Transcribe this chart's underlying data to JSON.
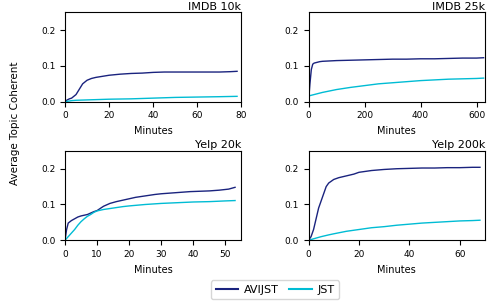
{
  "subplots": [
    {
      "title": "IMDB 10k",
      "xlabel": "Minutes",
      "xlim": [
        0,
        80
      ],
      "ylim": [
        0,
        0.25
      ],
      "yticks": [
        0.0,
        0.1,
        0.2
      ],
      "avijst": {
        "x": [
          0,
          1,
          2,
          3,
          4,
          5,
          6,
          7,
          8,
          9,
          10,
          12,
          14,
          16,
          18,
          20,
          25,
          30,
          35,
          40,
          45,
          50,
          55,
          60,
          65,
          70,
          75,
          78
        ],
        "y": [
          0.0,
          0.005,
          0.008,
          0.01,
          0.015,
          0.02,
          0.03,
          0.04,
          0.05,
          0.055,
          0.06,
          0.065,
          0.068,
          0.07,
          0.072,
          0.074,
          0.077,
          0.079,
          0.08,
          0.082,
          0.083,
          0.083,
          0.083,
          0.083,
          0.083,
          0.083,
          0.084,
          0.085
        ]
      },
      "jst": {
        "x": [
          0,
          1,
          2,
          3,
          5,
          10,
          20,
          30,
          40,
          50,
          60,
          70,
          78
        ],
        "y": [
          0.0,
          0.001,
          0.002,
          0.003,
          0.004,
          0.005,
          0.007,
          0.008,
          0.01,
          0.012,
          0.013,
          0.014,
          0.015
        ]
      }
    },
    {
      "title": "IMDB 25k",
      "xlabel": "Minutes",
      "xlim": [
        0,
        630
      ],
      "ylim": [
        0,
        0.25
      ],
      "yticks": [
        0.0,
        0.1,
        0.2
      ],
      "avijst": {
        "x": [
          0,
          5,
          10,
          15,
          20,
          30,
          40,
          50,
          75,
          100,
          150,
          200,
          250,
          300,
          350,
          400,
          450,
          500,
          550,
          600,
          625
        ],
        "y": [
          0.0,
          0.05,
          0.09,
          0.105,
          0.108,
          0.11,
          0.112,
          0.113,
          0.114,
          0.115,
          0.116,
          0.117,
          0.118,
          0.119,
          0.119,
          0.12,
          0.12,
          0.121,
          0.122,
          0.122,
          0.123
        ]
      },
      "jst": {
        "x": [
          0,
          5,
          10,
          20,
          30,
          50,
          75,
          100,
          150,
          200,
          250,
          300,
          350,
          400,
          450,
          500,
          550,
          600,
          625
        ],
        "y": [
          0.015,
          0.017,
          0.018,
          0.02,
          0.022,
          0.026,
          0.03,
          0.034,
          0.04,
          0.045,
          0.05,
          0.053,
          0.056,
          0.059,
          0.061,
          0.063,
          0.064,
          0.065,
          0.066
        ]
      }
    },
    {
      "title": "Yelp 20k",
      "xlabel": "Minutes",
      "xlim": [
        0,
        55
      ],
      "ylim": [
        0,
        0.25
      ],
      "yticks": [
        0.0,
        0.1,
        0.2
      ],
      "avijst": {
        "x": [
          0,
          0.5,
          1,
          2,
          3,
          4,
          5,
          6,
          7,
          8,
          9,
          10,
          12,
          14,
          16,
          18,
          20,
          22,
          25,
          28,
          30,
          33,
          36,
          39,
          42,
          45,
          48,
          51,
          53
        ],
        "y": [
          0.0,
          0.03,
          0.048,
          0.055,
          0.06,
          0.065,
          0.068,
          0.07,
          0.072,
          0.076,
          0.08,
          0.083,
          0.095,
          0.103,
          0.108,
          0.112,
          0.116,
          0.12,
          0.124,
          0.128,
          0.13,
          0.132,
          0.134,
          0.136,
          0.137,
          0.138,
          0.14,
          0.143,
          0.148
        ]
      },
      "jst": {
        "x": [
          0,
          1,
          2,
          3,
          4,
          5,
          6,
          7,
          8,
          9,
          10,
          12,
          15,
          18,
          20,
          25,
          30,
          35,
          40,
          45,
          50,
          53
        ],
        "y": [
          0.0,
          0.01,
          0.02,
          0.03,
          0.042,
          0.052,
          0.06,
          0.067,
          0.072,
          0.078,
          0.082,
          0.086,
          0.09,
          0.094,
          0.096,
          0.1,
          0.103,
          0.105,
          0.107,
          0.108,
          0.11,
          0.111
        ]
      }
    },
    {
      "title": "Yelp 200k",
      "xlabel": "Minutes",
      "xlim": [
        0,
        70
      ],
      "ylim": [
        0,
        0.25
      ],
      "yticks": [
        0.0,
        0.1,
        0.2
      ],
      "avijst": {
        "x": [
          0,
          1,
          2,
          3,
          4,
          5,
          6,
          7,
          8,
          10,
          12,
          15,
          18,
          20,
          25,
          30,
          35,
          40,
          45,
          50,
          55,
          60,
          65,
          68
        ],
        "y": [
          0.0,
          0.01,
          0.03,
          0.06,
          0.09,
          0.11,
          0.13,
          0.15,
          0.16,
          0.17,
          0.175,
          0.18,
          0.185,
          0.19,
          0.195,
          0.198,
          0.2,
          0.201,
          0.202,
          0.202,
          0.203,
          0.203,
          0.204,
          0.204
        ]
      },
      "jst": {
        "x": [
          0,
          1,
          2,
          3,
          5,
          8,
          10,
          15,
          20,
          25,
          30,
          35,
          40,
          45,
          50,
          55,
          60,
          65,
          68
        ],
        "y": [
          0.0,
          0.002,
          0.004,
          0.006,
          0.01,
          0.015,
          0.018,
          0.025,
          0.03,
          0.035,
          0.038,
          0.042,
          0.045,
          0.048,
          0.05,
          0.052,
          0.054,
          0.055,
          0.056
        ]
      }
    }
  ],
  "avijst_color": "#1a237e",
  "jst_color": "#00bcd4",
  "ylabel": "Average Topic Coherent",
  "legend_labels": [
    "AVIJST",
    "JST"
  ],
  "figsize": [
    5.0,
    3.08
  ],
  "dpi": 100
}
